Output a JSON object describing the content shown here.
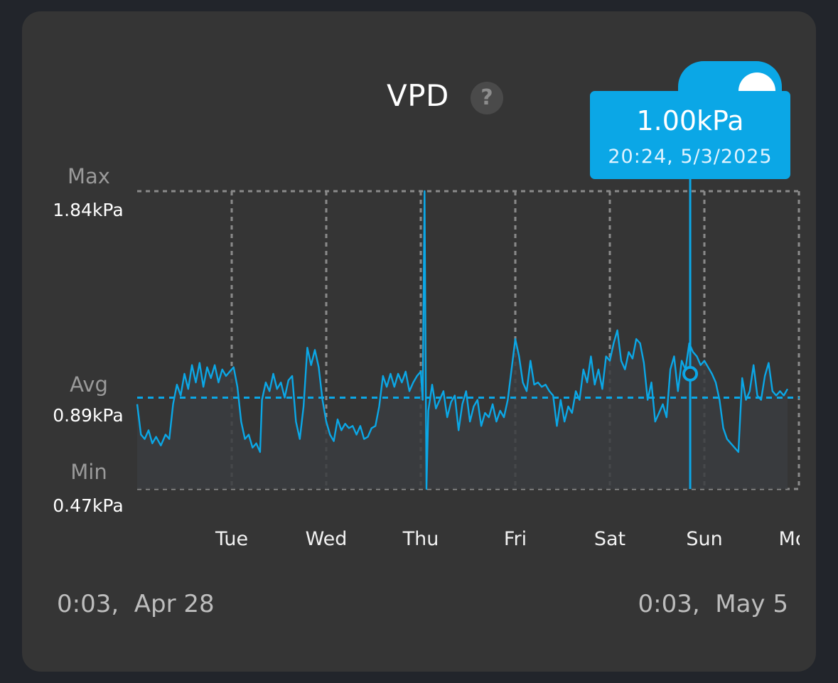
{
  "title": "VPD",
  "help_icon": "question-mark-icon",
  "accent_color": "#0ba7e6",
  "y_labels": {
    "max_word": "Max",
    "max_value": "1.84kPa",
    "avg_word": "Avg",
    "avg_value": "0.89kPa",
    "min_word": "Min",
    "min_value": "0.47kPa"
  },
  "range": {
    "start": "0:03,  Apr 28",
    "end": "0:03,  May 5"
  },
  "tooltip": {
    "value": "1.00kPa",
    "time": "20:24,  5/3/2025"
  },
  "chart_data": {
    "type": "line",
    "x_unit": "days since 0:03 Apr 28",
    "x_ticks": [
      {
        "label": "Tue",
        "x": 1
      },
      {
        "label": "Wed",
        "x": 2
      },
      {
        "label": "Thu",
        "x": 3
      },
      {
        "label": "Fri",
        "x": 4
      },
      {
        "label": "Sat",
        "x": 5
      },
      {
        "label": "Sun",
        "x": 6
      },
      {
        "label": "Mon",
        "x": 7
      }
    ],
    "xlim": [
      0,
      7
    ],
    "ylim": [
      0.47,
      1.84
    ],
    "ylabel": "kPa",
    "avg_line": 0.89,
    "grid": true,
    "highlight": {
      "x": 5.85,
      "y": 1.0
    },
    "series": [
      {
        "name": "VPD",
        "color": "#0ba7e6",
        "points": [
          [
            0.0,
            0.86
          ],
          [
            0.04,
            0.72
          ],
          [
            0.08,
            0.7
          ],
          [
            0.12,
            0.74
          ],
          [
            0.16,
            0.68
          ],
          [
            0.2,
            0.71
          ],
          [
            0.25,
            0.67
          ],
          [
            0.3,
            0.72
          ],
          [
            0.34,
            0.7
          ],
          [
            0.38,
            0.86
          ],
          [
            0.42,
            0.95
          ],
          [
            0.46,
            0.9
          ],
          [
            0.5,
            1.0
          ],
          [
            0.54,
            0.93
          ],
          [
            0.58,
            1.04
          ],
          [
            0.62,
            0.96
          ],
          [
            0.66,
            1.05
          ],
          [
            0.7,
            0.94
          ],
          [
            0.74,
            1.03
          ],
          [
            0.78,
            0.98
          ],
          [
            0.82,
            1.04
          ],
          [
            0.86,
            0.96
          ],
          [
            0.9,
            1.02
          ],
          [
            0.94,
            0.99
          ],
          [
            0.98,
            1.01
          ],
          [
            1.02,
            1.03
          ],
          [
            1.06,
            0.94
          ],
          [
            1.1,
            0.78
          ],
          [
            1.14,
            0.7
          ],
          [
            1.18,
            0.72
          ],
          [
            1.22,
            0.66
          ],
          [
            1.26,
            0.68
          ],
          [
            1.3,
            0.64
          ],
          [
            1.32,
            0.88
          ],
          [
            1.36,
            0.96
          ],
          [
            1.4,
            0.92
          ],
          [
            1.44,
            1.0
          ],
          [
            1.48,
            0.93
          ],
          [
            1.52,
            0.96
          ],
          [
            1.56,
            0.89
          ],
          [
            1.6,
            0.97
          ],
          [
            1.64,
            0.99
          ],
          [
            1.68,
            0.78
          ],
          [
            1.72,
            0.7
          ],
          [
            1.76,
            0.85
          ],
          [
            1.8,
            1.12
          ],
          [
            1.84,
            1.04
          ],
          [
            1.88,
            1.11
          ],
          [
            1.92,
            1.03
          ],
          [
            1.96,
            0.88
          ],
          [
            2.0,
            0.78
          ],
          [
            2.04,
            0.72
          ],
          [
            2.08,
            0.69
          ],
          [
            2.12,
            0.79
          ],
          [
            2.16,
            0.74
          ],
          [
            2.2,
            0.77
          ],
          [
            2.24,
            0.75
          ],
          [
            2.28,
            0.76
          ],
          [
            2.32,
            0.72
          ],
          [
            2.36,
            0.76
          ],
          [
            2.4,
            0.7
          ],
          [
            2.44,
            0.71
          ],
          [
            2.48,
            0.75
          ],
          [
            2.52,
            0.76
          ],
          [
            2.56,
            0.85
          ],
          [
            2.6,
            0.99
          ],
          [
            2.64,
            0.94
          ],
          [
            2.68,
            1.0
          ],
          [
            2.72,
            0.94
          ],
          [
            2.76,
            1.0
          ],
          [
            2.8,
            0.96
          ],
          [
            2.84,
            1.01
          ],
          [
            2.88,
            0.92
          ],
          [
            2.92,
            0.96
          ],
          [
            2.96,
            0.99
          ],
          [
            3.0,
            1.01
          ],
          [
            3.02,
            0.88
          ],
          [
            3.04,
            1.84
          ],
          [
            3.06,
            0.47
          ],
          [
            3.08,
            0.83
          ],
          [
            3.12,
            0.95
          ],
          [
            3.16,
            0.84
          ],
          [
            3.2,
            0.88
          ],
          [
            3.24,
            0.92
          ],
          [
            3.28,
            0.8
          ],
          [
            3.32,
            0.87
          ],
          [
            3.36,
            0.9
          ],
          [
            3.4,
            0.74
          ],
          [
            3.44,
            0.86
          ],
          [
            3.48,
            0.92
          ],
          [
            3.52,
            0.78
          ],
          [
            3.56,
            0.85
          ],
          [
            3.6,
            0.88
          ],
          [
            3.64,
            0.76
          ],
          [
            3.68,
            0.82
          ],
          [
            3.72,
            0.8
          ],
          [
            3.76,
            0.86
          ],
          [
            3.8,
            0.78
          ],
          [
            3.84,
            0.83
          ],
          [
            3.88,
            0.8
          ],
          [
            3.92,
            0.88
          ],
          [
            3.96,
            1.02
          ],
          [
            4.0,
            1.16
          ],
          [
            4.04,
            1.08
          ],
          [
            4.08,
            0.96
          ],
          [
            4.12,
            0.92
          ],
          [
            4.16,
            1.06
          ],
          [
            4.2,
            0.95
          ],
          [
            4.24,
            0.96
          ],
          [
            4.28,
            0.94
          ],
          [
            4.32,
            0.95
          ],
          [
            4.36,
            0.92
          ],
          [
            4.4,
            0.9
          ],
          [
            4.44,
            0.76
          ],
          [
            4.48,
            0.88
          ],
          [
            4.52,
            0.78
          ],
          [
            4.56,
            0.85
          ],
          [
            4.6,
            0.82
          ],
          [
            4.64,
            0.92
          ],
          [
            4.68,
            0.88
          ],
          [
            4.72,
            1.02
          ],
          [
            4.76,
            0.96
          ],
          [
            4.8,
            1.08
          ],
          [
            4.84,
            0.95
          ],
          [
            4.88,
            1.02
          ],
          [
            4.92,
            0.93
          ],
          [
            4.96,
            1.08
          ],
          [
            5.0,
            1.06
          ],
          [
            5.04,
            1.14
          ],
          [
            5.08,
            1.2
          ],
          [
            5.12,
            1.06
          ],
          [
            5.16,
            1.02
          ],
          [
            5.2,
            1.1
          ],
          [
            5.24,
            1.07
          ],
          [
            5.28,
            1.16
          ],
          [
            5.32,
            1.14
          ],
          [
            5.36,
            1.05
          ],
          [
            5.4,
            0.88
          ],
          [
            5.44,
            0.96
          ],
          [
            5.48,
            0.78
          ],
          [
            5.52,
            0.82
          ],
          [
            5.56,
            0.86
          ],
          [
            5.6,
            0.8
          ],
          [
            5.64,
            1.02
          ],
          [
            5.68,
            1.08
          ],
          [
            5.72,
            0.92
          ],
          [
            5.76,
            1.06
          ],
          [
            5.8,
            1.02
          ],
          [
            5.84,
            1.14
          ],
          [
            5.88,
            1.1
          ],
          [
            5.92,
            1.08
          ],
          [
            5.96,
            1.04
          ],
          [
            6.0,
            1.06
          ],
          [
            6.04,
            1.03
          ],
          [
            6.08,
            1.0
          ],
          [
            6.12,
            0.96
          ],
          [
            6.16,
            0.88
          ],
          [
            6.2,
            0.75
          ],
          [
            6.24,
            0.7
          ],
          [
            6.28,
            0.68
          ],
          [
            6.32,
            0.66
          ],
          [
            6.36,
            0.64
          ],
          [
            6.4,
            0.98
          ],
          [
            6.44,
            0.88
          ],
          [
            6.48,
            0.92
          ],
          [
            6.52,
            1.04
          ],
          [
            6.56,
            0.9
          ],
          [
            6.6,
            0.88
          ],
          [
            6.64,
            0.99
          ],
          [
            6.68,
            1.05
          ],
          [
            6.72,
            0.92
          ],
          [
            6.76,
            0.9
          ],
          [
            6.8,
            0.92
          ],
          [
            6.84,
            0.9
          ],
          [
            6.88,
            0.93
          ]
        ]
      }
    ]
  }
}
